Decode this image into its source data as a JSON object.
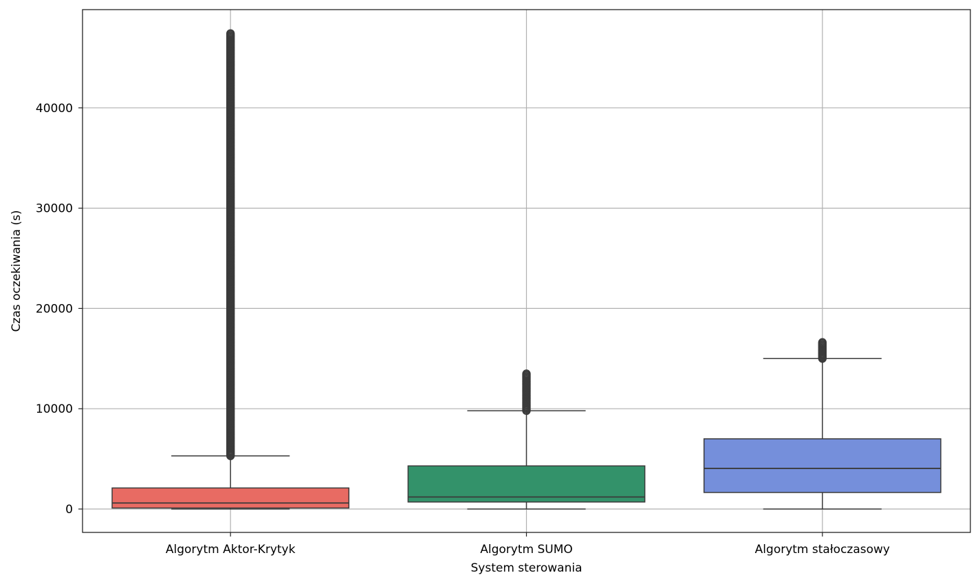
{
  "chart_data": {
    "type": "boxplot",
    "title": "",
    "xlabel": "System sterowania",
    "ylabel": "Czas oczekiwania (s)",
    "ylim": [
      -2400,
      49500
    ],
    "yticks": [
      0,
      10000,
      20000,
      30000,
      40000
    ],
    "yticklabels": [
      "0",
      "10000",
      "20000",
      "30000",
      "40000"
    ],
    "grid": true,
    "categories": [
      "Algorytm Aktor-Krytyk",
      "Algorytm SUMO",
      "Algorytm stałoczasowy"
    ],
    "boxes": [
      {
        "category": "Algorytm Aktor-Krytyk",
        "color": "#e86b63",
        "whisker_low": 0,
        "q1": 100,
        "median": 600,
        "q3": 2100,
        "whisker_high": 5300,
        "outliers_range": [
          5300,
          47500
        ]
      },
      {
        "category": "Algorytm SUMO",
        "color": "#33926a",
        "whisker_low": 0,
        "q1": 700,
        "median": 1200,
        "q3": 4300,
        "whisker_high": 9800,
        "outliers_range": [
          9800,
          13500
        ]
      },
      {
        "category": "Algorytm stałoczasowy",
        "color": "#758fdb",
        "whisker_low": 0,
        "q1": 1650,
        "median": 4050,
        "q3": 7000,
        "whisker_high": 15000,
        "outliers_range": [
          15000,
          16700
        ]
      }
    ]
  }
}
